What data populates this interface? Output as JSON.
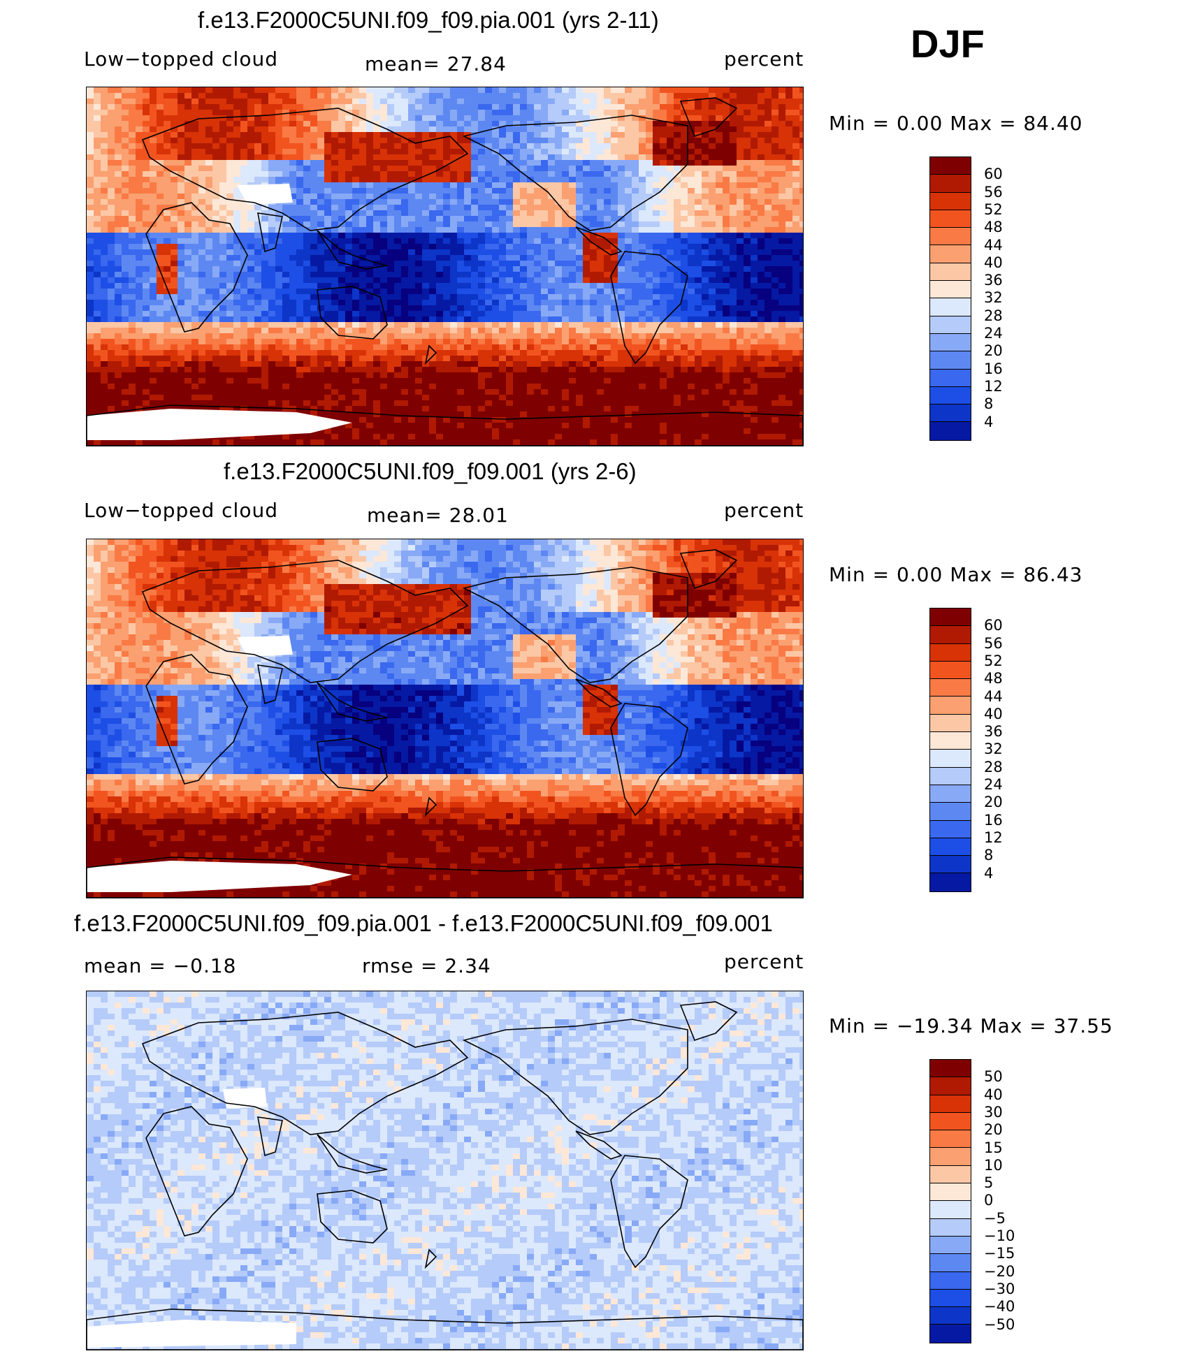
{
  "season": "DJF",
  "colors": {
    "abs_scale": [
      "#07007f",
      "#0619a3",
      "#0d35c8",
      "#1d4ee5",
      "#3a68ee",
      "#5d88f2",
      "#88a9f6",
      "#b5cbf9",
      "#dce8fc",
      "#fde7d7",
      "#fcc7a5",
      "#fba071",
      "#f97a45",
      "#f25420",
      "#d83207",
      "#b01a02",
      "#7f0000"
    ],
    "diff_scale": [
      "#07007f",
      "#0619a3",
      "#0d35c8",
      "#1d4ee5",
      "#3a68ee",
      "#5d88f2",
      "#88a9f6",
      "#b5cbf9",
      "#dce8fc",
      "#fde7d7",
      "#fcc7a5",
      "#fba071",
      "#f97a45",
      "#f25420",
      "#d83207",
      "#b01a02",
      "#7f0000"
    ]
  },
  "panels": [
    {
      "title": "f.e13.F2000C5UNI.f09_f09.pia.001 (yrs 2-11)",
      "left_label": "Low−topped cloud",
      "center_label": "mean=   27.84",
      "units": "percent",
      "minmax": "Min  =     0.00  Max  =    84.40",
      "type": "abs"
    },
    {
      "title": "f.e13.F2000C5UNI.f09_f09.001 (yrs 2-6)",
      "left_label": "Low−topped cloud",
      "center_label": "mean=   28.01",
      "units": "percent",
      "minmax": "Min  =     0.00  Max  =    86.43",
      "type": "abs"
    },
    {
      "title": "f.e13.F2000C5UNI.f09_f09.pia.001 - f.e13.F2000C5UNI.f09_f09.001",
      "left_label": "mean  =   −0.18",
      "center_label": "rmse  =     2.34",
      "units": "percent",
      "minmax": "Min  =  −19.34  Max  =    37.55",
      "type": "diff"
    }
  ],
  "chart_data": [
    {
      "type": "heatmap",
      "title": "f.e13.F2000C5UNI.f09_f09.pia.001 (yrs 2-11)",
      "variable": "Low-topped cloud",
      "units": "percent",
      "mean": 27.84,
      "min": 0.0,
      "max": 84.4,
      "colorbar_levels": [
        4,
        8,
        12,
        16,
        20,
        24,
        28,
        32,
        36,
        40,
        44,
        48,
        52,
        56,
        60
      ],
      "colorbar_labels": [
        "60",
        "56",
        "52",
        "48",
        "44",
        "40",
        "36",
        "32",
        "28",
        "24",
        "20",
        "16",
        "12",
        "8",
        "4"
      ]
    },
    {
      "type": "heatmap",
      "title": "f.e13.F2000C5UNI.f09_f09.001 (yrs 2-6)",
      "variable": "Low-topped cloud",
      "units": "percent",
      "mean": 28.01,
      "min": 0.0,
      "max": 86.43,
      "colorbar_levels": [
        4,
        8,
        12,
        16,
        20,
        24,
        28,
        32,
        36,
        40,
        44,
        48,
        52,
        56,
        60
      ],
      "colorbar_labels": [
        "60",
        "56",
        "52",
        "48",
        "44",
        "40",
        "36",
        "32",
        "28",
        "24",
        "20",
        "16",
        "12",
        "8",
        "4"
      ]
    },
    {
      "type": "heatmap",
      "title": "f.e13.F2000C5UNI.f09_f09.pia.001 - f.e13.F2000C5UNI.f09_f09.001",
      "units": "percent",
      "mean": -0.18,
      "rmse": 2.34,
      "min": -19.34,
      "max": 37.55,
      "colorbar_levels": [
        -50,
        -40,
        -30,
        -20,
        -15,
        -10,
        -5,
        0,
        5,
        10,
        15,
        20,
        30,
        40,
        50
      ],
      "colorbar_labels": [
        "50",
        "40",
        "30",
        "20",
        "15",
        "10",
        "5",
        "0",
        "−5",
        "−10",
        "−15",
        "−20",
        "−30",
        "−40",
        "−50"
      ]
    }
  ]
}
